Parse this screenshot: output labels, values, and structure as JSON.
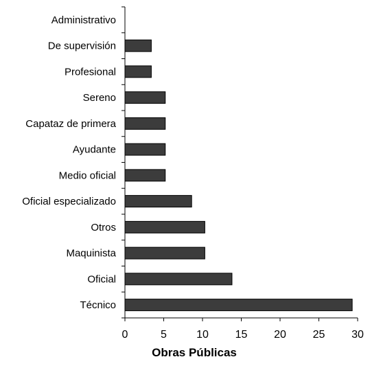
{
  "chart_data": {
    "type": "bar",
    "orientation": "horizontal",
    "categories": [
      "Administrativo",
      "De supervisión",
      "Profesional",
      "Sereno",
      "Capataz de primera",
      "Ayudante",
      "Medio oficial",
      "Oficial especializado",
      "Otros",
      "Maquinista",
      "Oficial",
      "Técnico"
    ],
    "values": [
      0,
      3.4,
      3.4,
      5.2,
      5.2,
      5.2,
      5.2,
      8.6,
      10.3,
      10.3,
      13.8,
      29.3
    ],
    "xlabel": "Obras Públicas",
    "ylabel": "",
    "xlim": [
      0,
      30
    ],
    "xticks": [
      "0",
      "5",
      "10",
      "15",
      "20",
      "25",
      "30"
    ],
    "grid": false,
    "legend": "none",
    "colors": {
      "bar_fill": "#3c3c3c",
      "bar_stroke": "#000000",
      "axis": "#000000"
    }
  }
}
